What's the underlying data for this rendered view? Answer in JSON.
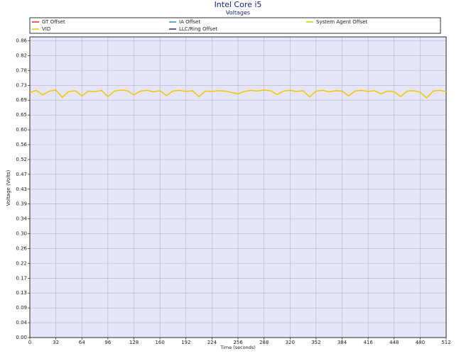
{
  "chart_data": {
    "type": "line",
    "title": "Intel Core i5",
    "subtitle": "Voltages",
    "x_label": "Time (seconds)",
    "y_label": "Voltage (Volts)",
    "x": [
      0,
      8,
      16,
      24,
      32,
      40,
      48,
      56,
      64,
      72,
      80,
      88,
      96,
      104,
      112,
      120,
      128,
      136,
      144,
      152,
      160,
      168,
      176,
      184,
      192,
      200,
      208,
      216,
      224,
      232,
      240,
      248,
      256,
      264,
      272,
      280,
      288,
      296,
      304,
      312,
      320,
      328,
      336,
      344,
      352,
      360,
      368,
      376,
      384,
      392,
      400,
      408,
      416,
      424,
      432,
      440,
      448,
      456,
      464,
      472,
      480,
      488,
      496,
      504,
      512
    ],
    "series": [
      {
        "name": "GT Offset",
        "color": "#e0282c",
        "values": [
          null,
          null,
          null,
          null,
          null,
          null,
          null,
          null,
          null,
          null,
          null,
          null,
          null,
          null,
          null,
          null,
          null,
          null,
          null,
          null,
          null,
          null,
          null,
          null,
          null,
          null,
          null,
          null,
          null,
          null,
          null,
          null,
          null,
          null,
          null,
          null,
          null,
          null,
          null,
          null,
          null,
          null,
          null,
          null,
          null,
          null,
          null,
          null,
          null,
          null,
          null,
          null,
          null,
          null,
          null,
          null,
          null,
          null,
          null,
          null,
          null,
          null,
          null,
          null,
          null
        ]
      },
      {
        "name": "IA Offset",
        "color": "#2a8ad4",
        "values": [
          null,
          null,
          null,
          null,
          null,
          null,
          null,
          null,
          null,
          null,
          null,
          null,
          null,
          null,
          null,
          null,
          null,
          null,
          null,
          null,
          null,
          null,
          null,
          null,
          null,
          null,
          null,
          null,
          null,
          null,
          null,
          null,
          null,
          null,
          null,
          null,
          null,
          null,
          null,
          null,
          null,
          null,
          null,
          null,
          null,
          null,
          null,
          null,
          null,
          null,
          null,
          null,
          null,
          null,
          null,
          null,
          null,
          null,
          null,
          null,
          null,
          null,
          null,
          null,
          null
        ]
      },
      {
        "name": "System Agent Offset",
        "color": "#c8d400",
        "values": [
          null,
          null,
          null,
          null,
          null,
          null,
          null,
          null,
          null,
          null,
          null,
          null,
          null,
          null,
          null,
          null,
          null,
          null,
          null,
          null,
          null,
          null,
          null,
          null,
          null,
          null,
          null,
          null,
          null,
          null,
          null,
          null,
          null,
          null,
          null,
          null,
          null,
          null,
          null,
          null,
          null,
          null,
          null,
          null,
          null,
          null,
          null,
          null,
          null,
          null,
          null,
          null,
          null,
          null,
          null,
          null,
          null,
          null,
          null,
          null,
          null,
          null,
          null,
          null,
          null
        ]
      },
      {
        "name": "VID",
        "color": "#f2c700",
        "values": [
          0.712,
          0.718,
          0.705,
          0.716,
          0.719,
          0.698,
          0.715,
          0.717,
          0.702,
          0.716,
          0.714,
          0.718,
          0.7,
          0.716,
          0.719,
          0.717,
          0.705,
          0.716,
          0.718,
          0.714,
          0.717,
          0.703,
          0.716,
          0.718,
          0.715,
          0.717,
          0.7,
          0.716,
          0.715,
          0.717,
          0.716,
          0.712,
          0.708,
          0.715,
          0.718,
          0.716,
          0.719,
          0.717,
          0.706,
          0.716,
          0.718,
          0.715,
          0.717,
          0.699,
          0.716,
          0.718,
          0.714,
          0.717,
          0.716,
          0.702,
          0.716,
          0.718,
          0.715,
          0.717,
          0.708,
          0.716,
          0.714,
          0.7,
          0.716,
          0.717,
          0.713,
          0.696,
          0.716,
          0.718,
          0.715
        ]
      },
      {
        "name": "LLC/Ring Offset",
        "color": "#1e2a80",
        "values": [
          null,
          null,
          null,
          null,
          null,
          null,
          null,
          null,
          null,
          null,
          null,
          null,
          null,
          null,
          null,
          null,
          null,
          null,
          null,
          null,
          null,
          null,
          null,
          null,
          null,
          null,
          null,
          null,
          null,
          null,
          null,
          null,
          null,
          null,
          null,
          null,
          null,
          null,
          null,
          null,
          null,
          null,
          null,
          null,
          null,
          null,
          null,
          null,
          null,
          null,
          null,
          null,
          null,
          null,
          null,
          null,
          null,
          null,
          null,
          null,
          null,
          null,
          null,
          null,
          null
        ]
      }
    ],
    "xlim": [
      0,
      512
    ],
    "xticks": [
      0,
      32,
      64,
      96,
      128,
      160,
      192,
      224,
      256,
      288,
      320,
      352,
      384,
      416,
      448,
      480,
      512
    ],
    "ylim": [
      0,
      0.8734
    ],
    "yticks": [
      {
        "value": 0,
        "label": "0.00"
      },
      {
        "value": 0.0431,
        "label": "0.04"
      },
      {
        "value": 0.0862,
        "label": "0.09"
      },
      {
        "value": 0.1293,
        "label": "0.13"
      },
      {
        "value": 0.1724,
        "label": "0.17"
      },
      {
        "value": 0.2155,
        "label": "0.22"
      },
      {
        "value": 0.2586,
        "label": "0.26"
      },
      {
        "value": 0.3017,
        "label": "0.30"
      },
      {
        "value": 0.3448,
        "label": "0.34"
      },
      {
        "value": 0.3879,
        "label": "0.39"
      },
      {
        "value": 0.431,
        "label": "0.43"
      },
      {
        "value": 0.4741,
        "label": "0.47"
      },
      {
        "value": 0.5172,
        "label": "0.52"
      },
      {
        "value": 0.5603,
        "label": "0.56"
      },
      {
        "value": 0.6034,
        "label": "0.60"
      },
      {
        "value": 0.6465,
        "label": "0.65"
      },
      {
        "value": 0.6896,
        "label": "0.69"
      },
      {
        "value": 0.7327,
        "label": "0.73"
      },
      {
        "value": 0.7758,
        "label": "0.78"
      },
      {
        "value": 0.8189,
        "label": "0.82"
      },
      {
        "value": 0.862,
        "label": "0.86"
      }
    ],
    "grid": true,
    "background": "#e6e6f8"
  }
}
